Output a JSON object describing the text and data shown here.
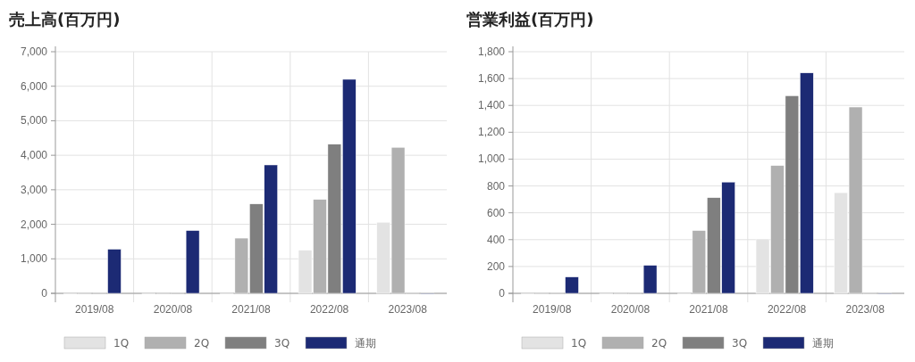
{
  "chart_data": [
    {
      "type": "bar",
      "title": "売上高(百万円)",
      "categories": [
        "2019/08",
        "2020/08",
        "2021/08",
        "2022/08",
        "2023/08"
      ],
      "series": [
        {
          "name": "1Q",
          "color": "#e3e3e3",
          "values": [
            0,
            0,
            0,
            1250,
            2060
          ]
        },
        {
          "name": "2Q",
          "color": "#b0b0b0",
          "values": [
            0,
            0,
            1600,
            2720,
            4230
          ]
        },
        {
          "name": "3Q",
          "color": "#7f7f7f",
          "values": [
            0,
            0,
            2590,
            4320,
            0
          ]
        },
        {
          "name": "通期",
          "color": "#1c2a74",
          "values": [
            1280,
            1820,
            3720,
            6200,
            0
          ]
        }
      ],
      "ylim": [
        0,
        7000
      ],
      "yticks": [
        0,
        {
          "value": 1000,
          "label": "1,000"
        },
        {
          "value": 2000,
          "label": "2,000"
        },
        {
          "value": 3000,
          "label": "3,000"
        },
        {
          "value": 4000,
          "label": "4,000"
        },
        {
          "value": 5000,
          "label": "5,000"
        },
        {
          "value": 6000,
          "label": "6,000"
        },
        {
          "value": 7000,
          "label": "7,000"
        }
      ],
      "grid": true,
      "legend": "bottom"
    },
    {
      "type": "bar",
      "title": "営業利益(百万円)",
      "categories": [
        "2019/08",
        "2020/08",
        "2021/08",
        "2022/08",
        "2023/08"
      ],
      "series": [
        {
          "name": "1Q",
          "color": "#e3e3e3",
          "values": [
            0,
            0,
            0,
            405,
            750
          ]
        },
        {
          "name": "2Q",
          "color": "#b0b0b0",
          "values": [
            0,
            0,
            468,
            952,
            1388
          ]
        },
        {
          "name": "3Q",
          "color": "#7f7f7f",
          "values": [
            0,
            0,
            713,
            1472,
            0
          ]
        },
        {
          "name": "通期",
          "color": "#1c2a74",
          "values": [
            122,
            209,
            829,
            1642,
            0
          ]
        }
      ],
      "ylim": [
        0,
        1800
      ],
      "yticks": [
        0,
        200,
        400,
        600,
        800,
        {
          "value": 1000,
          "label": "1,000"
        },
        {
          "value": 1200,
          "label": "1,200"
        },
        {
          "value": 1400,
          "label": "1,400"
        },
        {
          "value": 1600,
          "label": "1,600"
        },
        {
          "value": 1800,
          "label": "1,800"
        }
      ],
      "grid": true,
      "legend": "bottom"
    }
  ]
}
